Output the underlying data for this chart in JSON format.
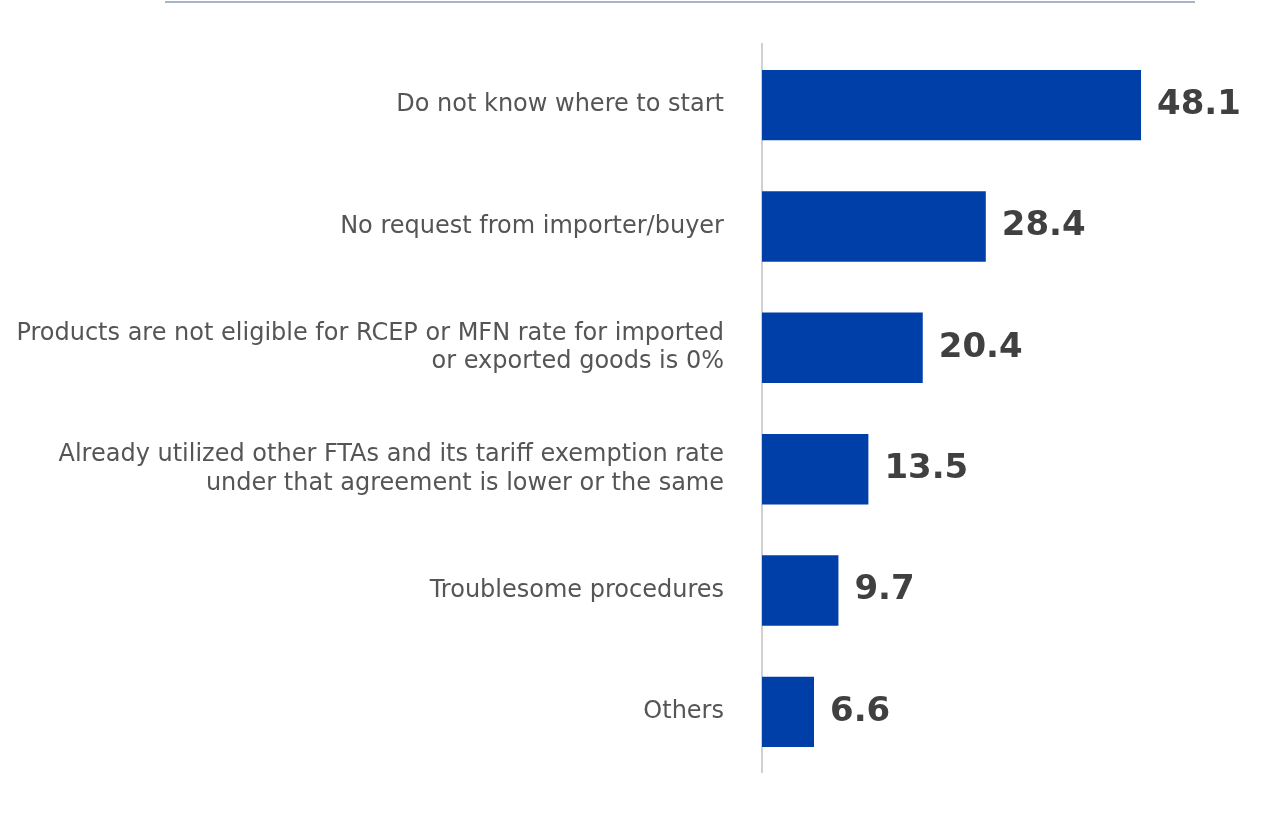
{
  "chart_data": {
    "type": "bar",
    "orientation": "horizontal",
    "categories": [
      "Do not know where to start",
      "No request from importer/buyer",
      "Products are not eligible for RCEP or MFN rate for imported or exported goods is 0%",
      "Already utilized other FTAs and its tariff exemption rate under that agreement is lower or the same",
      "Troublesome procedures",
      "Others"
    ],
    "values": [
      48.1,
      28.4,
      20.4,
      13.5,
      9.7,
      6.6
    ],
    "color": "#003fa8",
    "data_labels": true,
    "legend": false,
    "tick_labels": "y"
  }
}
